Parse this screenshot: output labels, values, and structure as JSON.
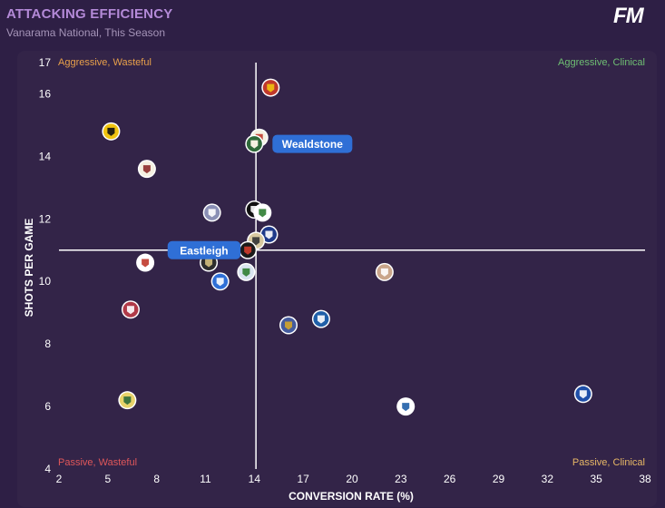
{
  "header": {
    "title": "ATTACKING EFFICIENCY",
    "subtitle": "Vanarama National, This Season",
    "logo_text": "FM"
  },
  "chart_data": {
    "type": "scatter",
    "title": "ATTACKING EFFICIENCY",
    "subtitle": "Vanarama National, This Season",
    "xlabel": "CONVERSION RATE (%)",
    "ylabel": "SHOTS PER GAME",
    "xlim": [
      2,
      38
    ],
    "ylim": [
      4,
      17
    ],
    "xticks": [
      2,
      5,
      8,
      11,
      14,
      17,
      20,
      23,
      26,
      29,
      32,
      35,
      38
    ],
    "yticks": [
      4,
      6,
      8,
      10,
      12,
      14,
      16,
      17
    ],
    "reference_lines": {
      "x": 14.1,
      "y": 11.0
    },
    "quadrants": {
      "top_left": "Aggressive, Wasteful",
      "top_right": "Aggressive, Clinical",
      "bottom_left": "Passive, Wasteful",
      "bottom_right": "Passive, Clinical"
    },
    "quadrant_colors": {
      "top_left": "#e8a04a",
      "top_right": "#6fbf73",
      "bottom_left": "#e0575a",
      "bottom_right": "#e8b866"
    },
    "highlighted": [
      {
        "label": "Wealdstone",
        "x": 14.0,
        "y": 14.4
      },
      {
        "label": "Eastleigh",
        "x": 13.6,
        "y": 11.0
      }
    ],
    "points": [
      {
        "x": 15.0,
        "y": 16.2,
        "color": "#c0392b",
        "accent": "#f1c40f"
      },
      {
        "x": 5.2,
        "y": 14.8,
        "color": "#f1c40f",
        "accent": "#111111"
      },
      {
        "x": 7.4,
        "y": 13.6,
        "color": "#f5f0e1",
        "accent": "#8e2b2b"
      },
      {
        "x": 14.3,
        "y": 14.6,
        "color": "#f5f0e1",
        "accent": "#c0392b"
      },
      {
        "x": 11.4,
        "y": 12.2,
        "color": "#8a8fb5",
        "accent": "#ffffff"
      },
      {
        "x": 14.0,
        "y": 12.3,
        "color": "#111111",
        "accent": "#ffffff"
      },
      {
        "x": 14.5,
        "y": 12.2,
        "color": "#ffffff",
        "accent": "#2e7d32"
      },
      {
        "x": 14.9,
        "y": 11.5,
        "color": "#1e3a8a",
        "accent": "#ffffff"
      },
      {
        "x": 14.1,
        "y": 11.3,
        "color": "#d8c9a0",
        "accent": "#333333"
      },
      {
        "x": 7.3,
        "y": 10.6,
        "color": "#ffffff",
        "accent": "#c0392b"
      },
      {
        "x": 11.2,
        "y": 10.6,
        "color": "#2d2d2d",
        "accent": "#d4c080"
      },
      {
        "x": 13.5,
        "y": 10.3,
        "color": "#d9e4f0",
        "accent": "#2e7d32"
      },
      {
        "x": 11.9,
        "y": 10.0,
        "color": "#2f6fd6",
        "accent": "#ffffff"
      },
      {
        "x": 22.0,
        "y": 10.3,
        "color": "#c9a58a",
        "accent": "#ffffff"
      },
      {
        "x": 6.4,
        "y": 9.1,
        "color": "#b03a48",
        "accent": "#ffffff"
      },
      {
        "x": 16.1,
        "y": 8.6,
        "color": "#445b9e",
        "accent": "#d4a52a"
      },
      {
        "x": 18.1,
        "y": 8.8,
        "color": "#1f5fa8",
        "accent": "#ffffff"
      },
      {
        "x": 6.2,
        "y": 6.2,
        "color": "#e8d36a",
        "accent": "#2b6a3a"
      },
      {
        "x": 23.3,
        "y": 6.0,
        "color": "#ffffff",
        "accent": "#1f5fa8"
      },
      {
        "x": 34.2,
        "y": 6.4,
        "color": "#1f4fa8",
        "accent": "#ffffff"
      }
    ]
  }
}
